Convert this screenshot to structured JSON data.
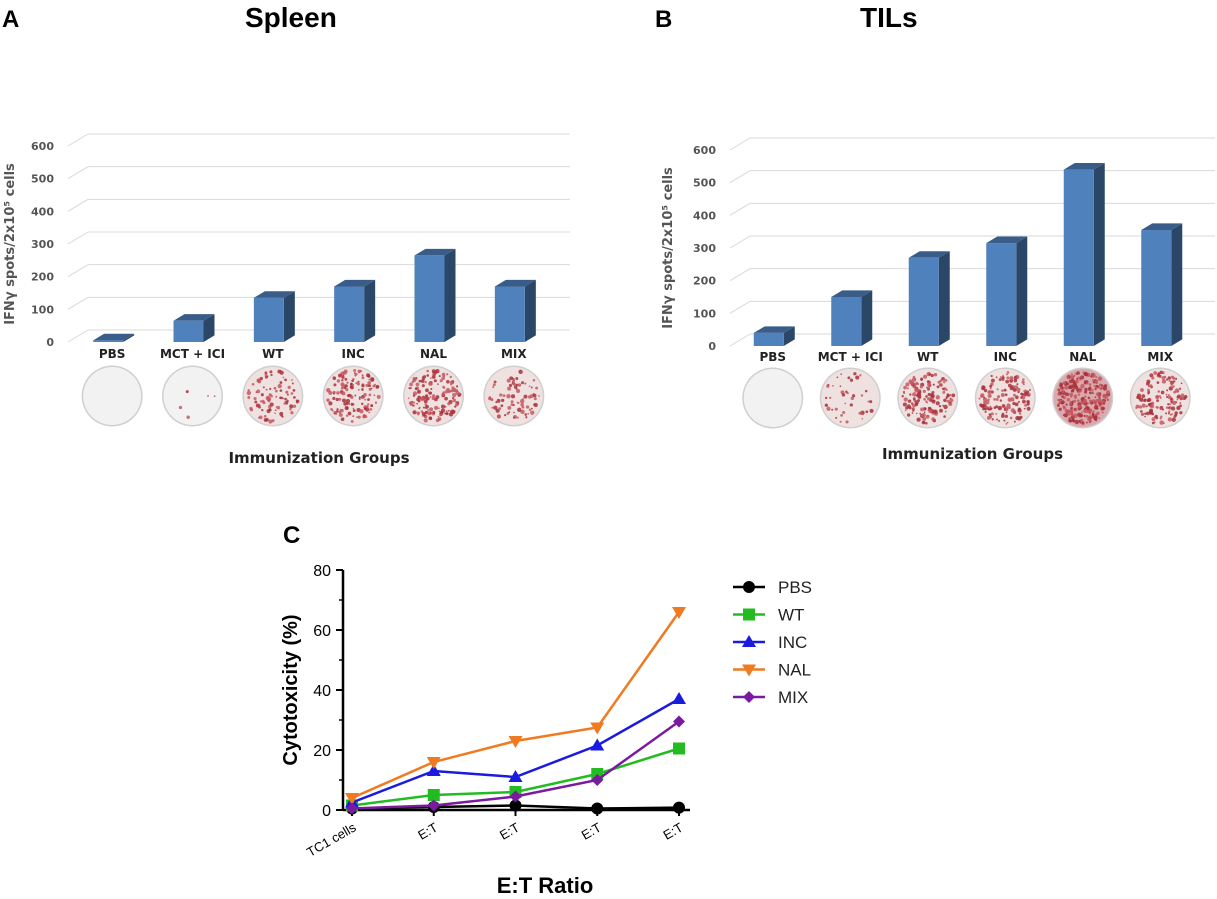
{
  "chart_data": [
    {
      "panel": "A",
      "type": "bar",
      "title": "Spleen",
      "categories": [
        "PBS",
        "MCT + ICI",
        "WT",
        "INC",
        "NAL",
        "MIX"
      ],
      "values": [
        5,
        65,
        135,
        170,
        265,
        170
      ],
      "ylabel": "IFNγ spots/2x10⁵ cells",
      "xlabel": "Immunization Groups",
      "ylim": [
        0,
        600
      ],
      "yticks": [
        "0",
        "100",
        "200",
        "300",
        "400",
        "500",
        "600"
      ],
      "well_intensity": [
        0.0,
        0.02,
        0.35,
        0.5,
        0.6,
        0.3
      ],
      "bar_color": "#4f81bd"
    },
    {
      "panel": "B",
      "type": "bar",
      "title": "TILs",
      "categories": [
        "PBS",
        "MCT + ICI",
        "WT",
        "INC",
        "NAL",
        "MIX"
      ],
      "values": [
        40,
        150,
        270,
        315,
        540,
        355
      ],
      "ylabel": "IFNγ spots/2x10⁵ cells",
      "xlabel": "Immunization Groups",
      "ylim": [
        0,
        600
      ],
      "yticks": [
        "0",
        "100",
        "200",
        "300",
        "400",
        "500",
        "600"
      ],
      "well_intensity": [
        0.0,
        0.15,
        0.55,
        0.55,
        0.95,
        0.5
      ],
      "bar_color": "#4f81bd"
    },
    {
      "panel": "C",
      "type": "line",
      "x": [
        "TC1 cells",
        "E:T",
        "E:T",
        "E:T",
        "E:T"
      ],
      "ylabel": "Cytotoxicity (%)",
      "xlabel": "E:T Ratio",
      "ylim": [
        0,
        80
      ],
      "yticks": [
        "0",
        "20",
        "40",
        "60",
        "80"
      ],
      "series": [
        {
          "name": "PBS",
          "values": [
            0.5,
            1,
            1.5,
            0.5,
            0.8
          ],
          "color": "#000000",
          "marker": "circle"
        },
        {
          "name": "WT",
          "values": [
            1.5,
            5,
            6,
            12,
            20.5
          ],
          "color": "#22bb22",
          "marker": "square"
        },
        {
          "name": "INC",
          "values": [
            2.5,
            13,
            11,
            21.5,
            37
          ],
          "color": "#1a1ae0",
          "marker": "triangle-up"
        },
        {
          "name": "NAL",
          "values": [
            4,
            16,
            23,
            27.5,
            66
          ],
          "color": "#f07a20",
          "marker": "triangle-down"
        },
        {
          "name": "MIX",
          "values": [
            0.5,
            1.5,
            4.5,
            10,
            29.5
          ],
          "color": "#7a1aa0",
          "marker": "diamond"
        }
      ]
    }
  ]
}
